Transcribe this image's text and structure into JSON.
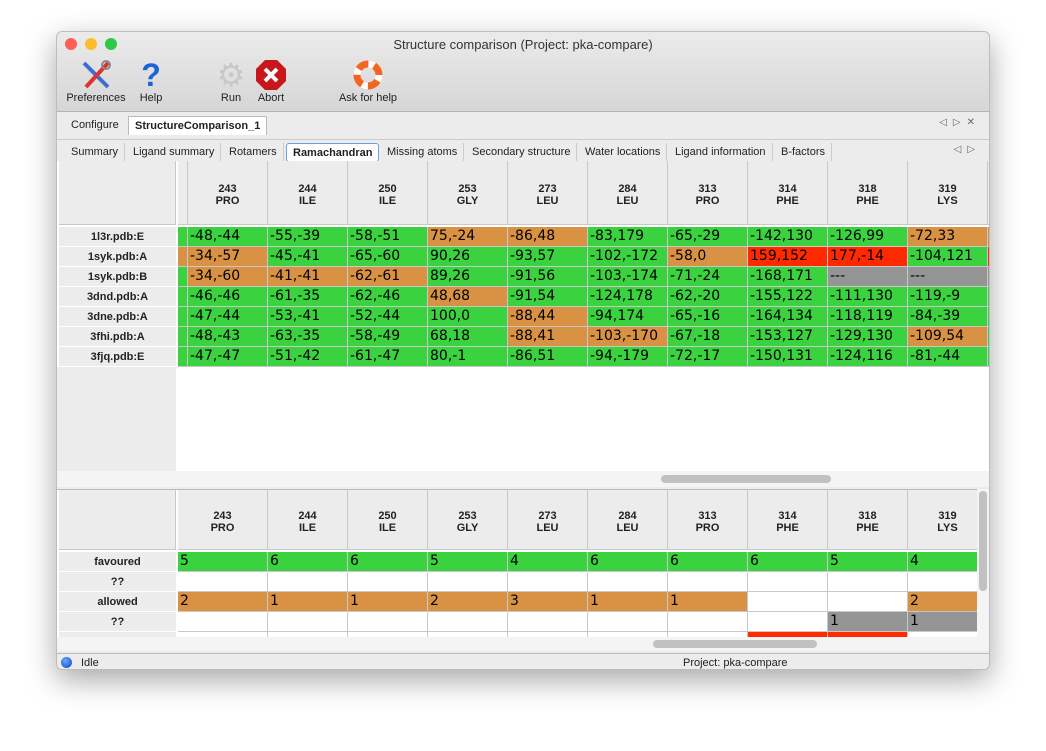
{
  "window": {
    "title": "Structure comparison (Project: pka-compare)"
  },
  "toolbar": [
    {
      "label": "Preferences",
      "icon": "wrench-screwdriver-icon"
    },
    {
      "label": "Help",
      "icon": "question-icon"
    },
    {
      "label": "Run",
      "icon": "gear-icon"
    },
    {
      "label": "Abort",
      "icon": "stop-x-icon"
    },
    {
      "label": "Ask for help",
      "icon": "lifebuoy-icon"
    }
  ],
  "main_tabs": [
    {
      "label": "Configure"
    },
    {
      "label": "StructureComparison_1",
      "selected": true
    }
  ],
  "sub_tabs": [
    {
      "label": "Summary"
    },
    {
      "label": "Ligand summary"
    },
    {
      "label": "Rotamers"
    },
    {
      "label": "Ramachandran",
      "selected": true
    },
    {
      "label": "Missing atoms"
    },
    {
      "label": "Secondary structure"
    },
    {
      "label": "Water locations"
    },
    {
      "label": "Ligand information"
    },
    {
      "label": "B-factors"
    }
  ],
  "colors": {
    "favoured": "#3bd23f",
    "allowed": "#d99243",
    "outlier": "#ff2a00",
    "missing": "#959595"
  },
  "columns": [
    {
      "num": "243",
      "res": "PRO"
    },
    {
      "num": "244",
      "res": "ILE"
    },
    {
      "num": "250",
      "res": "ILE"
    },
    {
      "num": "253",
      "res": "GLY"
    },
    {
      "num": "273",
      "res": "LEU"
    },
    {
      "num": "284",
      "res": "LEU"
    },
    {
      "num": "313",
      "res": "PRO"
    },
    {
      "num": "314",
      "res": "PHE"
    },
    {
      "num": "318",
      "res": "PHE"
    },
    {
      "num": "319",
      "res": "LYS"
    }
  ],
  "rows": [
    {
      "label": "1l3r.pdb:E",
      "lead": "favoured",
      "tail": "allowed",
      "cells": [
        [
          "-48,-44",
          "favoured"
        ],
        [
          "-55,-39",
          "favoured"
        ],
        [
          "-58,-51",
          "favoured"
        ],
        [
          "75,-24",
          "allowed"
        ],
        [
          "-86,48",
          "allowed"
        ],
        [
          "-83,179",
          "favoured"
        ],
        [
          "-65,-29",
          "favoured"
        ],
        [
          "-142,130",
          "favoured"
        ],
        [
          "-126,99",
          "favoured"
        ],
        [
          "-72,33",
          "allowed"
        ]
      ]
    },
    {
      "label": "1syk.pdb:A",
      "lead": "allowed",
      "tail": "outlier",
      "cells": [
        [
          "-34,-57",
          "allowed"
        ],
        [
          "-45,-41",
          "favoured"
        ],
        [
          "-65,-60",
          "favoured"
        ],
        [
          "90,26",
          "favoured"
        ],
        [
          "-93,57",
          "favoured"
        ],
        [
          "-102,-172",
          "favoured"
        ],
        [
          "-58,0",
          "allowed"
        ],
        [
          "159,152",
          "outlier"
        ],
        [
          "177,-14",
          "outlier"
        ],
        [
          "-104,121",
          "favoured"
        ]
      ]
    },
    {
      "label": "1syk.pdb:B",
      "lead": "favoured",
      "tail": "missing",
      "cells": [
        [
          "-34,-60",
          "allowed"
        ],
        [
          "-41,-41",
          "allowed"
        ],
        [
          "-62,-61",
          "allowed"
        ],
        [
          "89,26",
          "favoured"
        ],
        [
          "-91,56",
          "favoured"
        ],
        [
          "-103,-174",
          "favoured"
        ],
        [
          "-71,-24",
          "favoured"
        ],
        [
          "-168,171",
          "favoured"
        ],
        [
          "---",
          "missing"
        ],
        [
          "---",
          "missing"
        ]
      ]
    },
    {
      "label": "3dnd.pdb:A",
      "lead": "favoured",
      "tail": "favoured",
      "cells": [
        [
          "-46,-46",
          "favoured"
        ],
        [
          "-61,-35",
          "favoured"
        ],
        [
          "-62,-46",
          "favoured"
        ],
        [
          "48,68",
          "allowed"
        ],
        [
          "-91,54",
          "favoured"
        ],
        [
          "-124,178",
          "favoured"
        ],
        [
          "-62,-20",
          "favoured"
        ],
        [
          "-155,122",
          "favoured"
        ],
        [
          "-111,130",
          "favoured"
        ],
        [
          "-119,-9",
          "favoured"
        ]
      ]
    },
    {
      "label": "3dne.pdb:A",
      "lead": "favoured",
      "tail": "favoured",
      "cells": [
        [
          "-47,-44",
          "favoured"
        ],
        [
          "-53,-41",
          "favoured"
        ],
        [
          "-52,-44",
          "favoured"
        ],
        [
          "100,0",
          "favoured"
        ],
        [
          "-88,44",
          "allowed"
        ],
        [
          "-94,174",
          "favoured"
        ],
        [
          "-65,-16",
          "favoured"
        ],
        [
          "-164,134",
          "favoured"
        ],
        [
          "-118,119",
          "favoured"
        ],
        [
          "-84,-39",
          "favoured"
        ]
      ]
    },
    {
      "label": "3fhi.pdb:A",
      "lead": "favoured",
      "tail": "favoured",
      "cells": [
        [
          "-48,-43",
          "favoured"
        ],
        [
          "-63,-35",
          "favoured"
        ],
        [
          "-58,-49",
          "favoured"
        ],
        [
          "68,18",
          "favoured"
        ],
        [
          "-88,41",
          "allowed"
        ],
        [
          "-103,-170",
          "allowed"
        ],
        [
          "-67,-18",
          "favoured"
        ],
        [
          "-153,127",
          "favoured"
        ],
        [
          "-129,130",
          "favoured"
        ],
        [
          "-109,54",
          "allowed"
        ]
      ]
    },
    {
      "label": "3fjq.pdb:E",
      "lead": "favoured",
      "tail": "favoured",
      "cells": [
        [
          "-47,-47",
          "favoured"
        ],
        [
          "-51,-42",
          "favoured"
        ],
        [
          "-61,-47",
          "favoured"
        ],
        [
          "80,-1",
          "favoured"
        ],
        [
          "-86,51",
          "favoured"
        ],
        [
          "-94,-179",
          "favoured"
        ],
        [
          "-72,-17",
          "favoured"
        ],
        [
          "-150,131",
          "favoured"
        ],
        [
          "-124,116",
          "favoured"
        ],
        [
          "-81,-44",
          "favoured"
        ]
      ]
    }
  ],
  "summary_rows": [
    {
      "label": "favoured",
      "cells": [
        [
          "5",
          "favoured"
        ],
        [
          "6",
          "favoured"
        ],
        [
          "6",
          "favoured"
        ],
        [
          "5",
          "favoured"
        ],
        [
          "4",
          "favoured"
        ],
        [
          "6",
          "favoured"
        ],
        [
          "6",
          "favoured"
        ],
        [
          "6",
          "favoured"
        ],
        [
          "5",
          "favoured"
        ],
        [
          "4",
          "favoured"
        ]
      ]
    },
    {
      "label": "??",
      "cells": [
        [
          "",
          ""
        ],
        [
          "",
          ""
        ],
        [
          "",
          ""
        ],
        [
          "",
          ""
        ],
        [
          "",
          ""
        ],
        [
          "",
          ""
        ],
        [
          "",
          ""
        ],
        [
          "",
          ""
        ],
        [
          "",
          ""
        ],
        [
          "",
          ""
        ]
      ]
    },
    {
      "label": "allowed",
      "cells": [
        [
          "2",
          "allowed"
        ],
        [
          "1",
          "allowed"
        ],
        [
          "1",
          "allowed"
        ],
        [
          "2",
          "allowed"
        ],
        [
          "3",
          "allowed"
        ],
        [
          "1",
          "allowed"
        ],
        [
          "1",
          "allowed"
        ],
        [
          "",
          ""
        ],
        [
          "",
          ""
        ],
        [
          "2",
          "allowed"
        ]
      ]
    },
    {
      "label": "??",
      "cells": [
        [
          "",
          ""
        ],
        [
          "",
          ""
        ],
        [
          "",
          ""
        ],
        [
          "",
          ""
        ],
        [
          "",
          ""
        ],
        [
          "",
          ""
        ],
        [
          "",
          ""
        ],
        [
          "",
          ""
        ],
        [
          "1",
          "missing"
        ],
        [
          "1",
          "missing"
        ]
      ]
    },
    {
      "label": "",
      "cells": [
        [
          "",
          ""
        ],
        [
          "",
          ""
        ],
        [
          "",
          ""
        ],
        [
          "",
          ""
        ],
        [
          "",
          ""
        ],
        [
          "",
          ""
        ],
        [
          "",
          ""
        ],
        [
          "",
          "outlier"
        ],
        [
          "",
          "outlier"
        ],
        [
          "",
          ""
        ]
      ]
    }
  ],
  "status": {
    "state": "Idle",
    "project": "Project: pka-compare"
  }
}
